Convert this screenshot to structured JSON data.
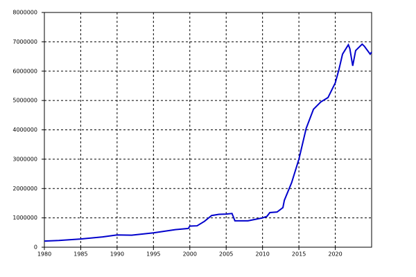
{
  "chart_data": {
    "type": "line",
    "x": [
      1980,
      1982,
      1985,
      1988,
      1990,
      1992,
      1995,
      1998,
      1999.8,
      2000,
      2001,
      2002,
      2003,
      2004,
      2005,
      2005.8,
      2006.2,
      2007,
      2008,
      2009,
      2010,
      2010.6,
      2011,
      2012,
      2012.8,
      2013,
      2014,
      2015,
      2016,
      2017,
      2018,
      2019,
      2020,
      2020.5,
      2021,
      2021.8,
      2022,
      2022.4,
      2022.8,
      2023,
      2023.7,
      2024,
      2024.8,
      2025
    ],
    "series": [
      {
        "color": "#0000cc",
        "values": [
          210000,
          230000,
          280000,
          350000,
          420000,
          410000,
          490000,
          600000,
          640000,
          720000,
          730000,
          880000,
          1080000,
          1120000,
          1130000,
          1150000,
          900000,
          900000,
          900000,
          950000,
          1000000,
          1050000,
          1180000,
          1200000,
          1350000,
          1600000,
          2200000,
          3000000,
          4050000,
          4700000,
          4950000,
          5100000,
          5600000,
          6050000,
          6580000,
          6900000,
          6770000,
          6180000,
          6700000,
          6750000,
          6920000,
          6850000,
          6580000,
          6650000
        ]
      }
    ],
    "xlim": [
      1980,
      2025
    ],
    "xticks": [
      1980,
      1985,
      1990,
      1995,
      2000,
      2005,
      2010,
      2015,
      2020
    ],
    "ylim": [
      0,
      8000000
    ],
    "yticks": [
      0,
      1000000,
      2000000,
      3000000,
      4000000,
      5000000,
      6000000,
      7000000,
      8000000
    ],
    "grid": true
  }
}
